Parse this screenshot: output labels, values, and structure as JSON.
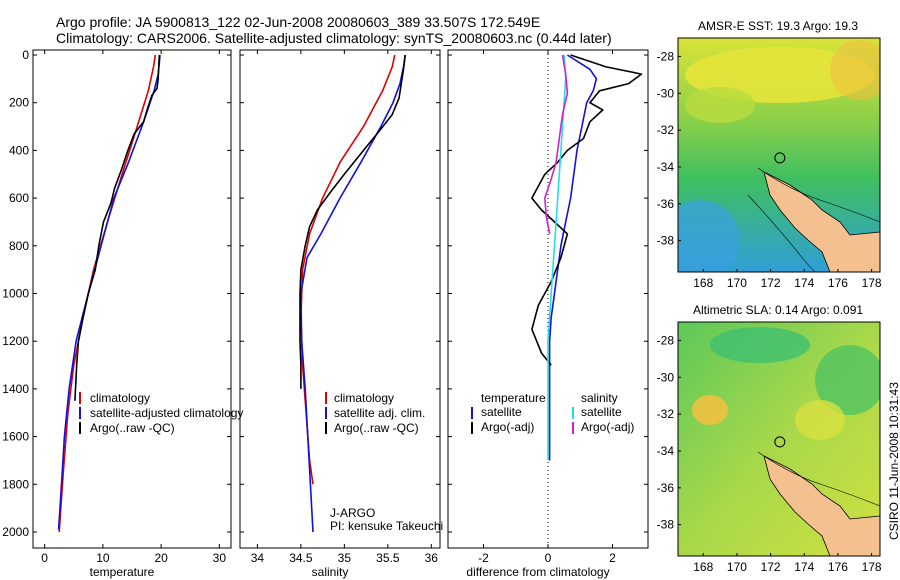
{
  "header": {
    "line1": "Argo profile: JA 5900813_122 02-Jun-2008 20080603_389 33.507S 172.549E",
    "line2": "Climatology: CARS2006. Satellite-adjusted climatology: synTS_20080603.nc (0.44d later)"
  },
  "side_label": "CSIRO 11-Jun-2008 10:31:43",
  "colors": {
    "climatology": "#e00000",
    "satellite": "#1010e0",
    "argo": "#000000",
    "sat_sal": "#20e0e8",
    "argo_sal": "#d020d0"
  },
  "chart_data": [
    {
      "id": "temperature",
      "type": "line",
      "xlabel": "temperature",
      "ylabel": "",
      "xlim": [
        -2,
        32
      ],
      "ylim": [
        2100,
        0
      ],
      "xticks": [
        0,
        10,
        20,
        30
      ],
      "yticks": [
        0,
        200,
        400,
        600,
        800,
        1000,
        1200,
        1400,
        1600,
        1800,
        2000
      ],
      "legend": [
        "climatology",
        "satellite-adjusted climatology",
        "Argo(..raw -QC)"
      ],
      "series": [
        {
          "name": "climatology",
          "color": "#e00000",
          "points": [
            [
              19,
              0
            ],
            [
              18.7,
              50
            ],
            [
              17.8,
              150
            ],
            [
              15.9,
              300
            ],
            [
              13.3,
              500
            ],
            [
              10.8,
              700
            ],
            [
              8.4,
              900
            ],
            [
              6.6,
              1100
            ],
            [
              5,
              1300
            ],
            [
              4,
              1500
            ],
            [
              3.2,
              1750
            ],
            [
              2.5,
              2000
            ]
          ]
        },
        {
          "name": "satellite-adjusted climatology",
          "color": "#1010e0",
          "points": [
            [
              19.8,
              0
            ],
            [
              19.7,
              30
            ],
            [
              19.5,
              80
            ],
            [
              18.8,
              150
            ],
            [
              17,
              280
            ],
            [
              14.4,
              450
            ],
            [
              11.9,
              600
            ],
            [
              9.7,
              800
            ],
            [
              7.5,
              1000
            ],
            [
              5.4,
              1200
            ],
            [
              4.2,
              1400
            ],
            [
              3.4,
              1600
            ],
            [
              2.9,
              1800
            ],
            [
              2.4,
              1990
            ]
          ]
        },
        {
          "name": "Argo(..raw -QC)",
          "color": "#000000",
          "points": [
            [
              19.7,
              0
            ],
            [
              19.6,
              40
            ],
            [
              19.5,
              100
            ],
            [
              19.3,
              140
            ],
            [
              18.4,
              170
            ],
            [
              17.6,
              230
            ],
            [
              17,
              280
            ],
            [
              15.4,
              330
            ],
            [
              14.3,
              400
            ],
            [
              13.2,
              480
            ],
            [
              12,
              560
            ],
            [
              11.4,
              620
            ],
            [
              10.1,
              700
            ],
            [
              9.3,
              800
            ],
            [
              8.7,
              900
            ],
            [
              7.5,
              1000
            ],
            [
              6.6,
              1100
            ],
            [
              5.8,
              1200
            ],
            [
              5.5,
              1300
            ],
            [
              5.2,
              1450
            ]
          ]
        }
      ]
    },
    {
      "id": "salinity",
      "type": "line",
      "xlabel": "salinity",
      "ylabel": "",
      "xlim": [
        33.8,
        36.1
      ],
      "ylim": [
        2100,
        0
      ],
      "xticks": [
        34,
        34.5,
        35,
        35.5,
        36
      ],
      "yticks": [
        0,
        200,
        400,
        600,
        800,
        1000,
        1200,
        1400,
        1600,
        1800,
        2000
      ],
      "legend": [
        "climatology",
        "satellite adj. clim.",
        "Argo(..raw -QC)"
      ],
      "annotations": [
        "J-ARGO",
        "PI: kensuke Takeuchi"
      ],
      "series": [
        {
          "name": "climatology",
          "color": "#e00000",
          "points": [
            [
              35.58,
              0
            ],
            [
              35.55,
              50
            ],
            [
              35.44,
              150
            ],
            [
              35.22,
              300
            ],
            [
              34.95,
              450
            ],
            [
              34.75,
              600
            ],
            [
              34.6,
              750
            ],
            [
              34.52,
              900
            ],
            [
              34.5,
              1100
            ],
            [
              34.52,
              1300
            ],
            [
              34.56,
              1500
            ],
            [
              34.6,
              1700
            ],
            [
              34.64,
              1800
            ]
          ]
        },
        {
          "name": "satellite adj. clim.",
          "color": "#1010e0",
          "points": [
            [
              35.7,
              0
            ],
            [
              35.68,
              50
            ],
            [
              35.64,
              120
            ],
            [
              35.56,
              200
            ],
            [
              35.42,
              300
            ],
            [
              35.19,
              450
            ],
            [
              34.95,
              600
            ],
            [
              34.73,
              750
            ],
            [
              34.57,
              850
            ],
            [
              34.5,
              1000
            ],
            [
              34.51,
              1200
            ],
            [
              34.55,
              1400
            ],
            [
              34.58,
              1600
            ],
            [
              34.61,
              1800
            ],
            [
              34.64,
              2000
            ]
          ]
        },
        {
          "name": "Argo(..raw -QC)",
          "color": "#000000",
          "points": [
            [
              35.7,
              0
            ],
            [
              35.68,
              60
            ],
            [
              35.65,
              130
            ],
            [
              35.63,
              180
            ],
            [
              35.55,
              250
            ],
            [
              35.4,
              320
            ],
            [
              35.22,
              400
            ],
            [
              35.0,
              500
            ],
            [
              34.83,
              580
            ],
            [
              34.69,
              650
            ],
            [
              34.6,
              720
            ],
            [
              34.55,
              800
            ],
            [
              34.5,
              900
            ],
            [
              34.49,
              1000
            ],
            [
              34.49,
              1200
            ],
            [
              34.5,
              1300
            ],
            [
              34.5,
              1400
            ]
          ]
        }
      ]
    },
    {
      "id": "difference",
      "type": "line",
      "xlabel": "difference from climatology",
      "ylabel": "",
      "xlim": [
        -3.1,
        3.1
      ],
      "ylim": [
        2100,
        0
      ],
      "xticks": [
        -2,
        0,
        2
      ],
      "yticks": [
        0,
        200,
        400,
        600,
        800,
        1000,
        1200,
        1400,
        1600,
        1800,
        2000
      ],
      "legend_groups": [
        {
          "title": "temperature",
          "entries": [
            "satellite",
            "Argo(-adj)"
          ]
        },
        {
          "title": "salinity",
          "entries": [
            "satellite",
            "Argo(-adj)"
          ]
        }
      ],
      "series": [
        {
          "name": "temperature satellite",
          "color": "#1010e0",
          "points": [
            [
              0.6,
              0
            ],
            [
              1.3,
              60
            ],
            [
              1.5,
              100
            ],
            [
              1.4,
              150
            ],
            [
              1.2,
              200
            ],
            [
              1.05,
              300
            ],
            [
              0.9,
              400
            ],
            [
              0.8,
              500
            ],
            [
              0.7,
              600
            ],
            [
              0.55,
              700
            ],
            [
              0.4,
              800
            ],
            [
              0.3,
              900
            ],
            [
              0.2,
              1000
            ],
            [
              0.1,
              1100
            ],
            [
              0.05,
              1200
            ],
            [
              0.05,
              1400
            ],
            [
              0.05,
              1600
            ],
            [
              0.05,
              1700
            ]
          ]
        },
        {
          "name": "temperature Argo(-adj)",
          "color": "#000000",
          "points": [
            [
              0.7,
              0
            ],
            [
              1.8,
              50
            ],
            [
              2.9,
              80
            ],
            [
              2.5,
              120
            ],
            [
              1.6,
              150
            ],
            [
              1.3,
              200
            ],
            [
              1.7,
              230
            ],
            [
              1.3,
              280
            ],
            [
              1.1,
              350
            ],
            [
              0.6,
              400
            ],
            [
              0.3,
              450
            ],
            [
              -0.1,
              500
            ],
            [
              -0.3,
              550
            ],
            [
              -0.5,
              600
            ],
            [
              -0.2,
              650
            ],
            [
              0.2,
              700
            ],
            [
              0.6,
              750
            ],
            [
              0.4,
              850
            ],
            [
              0.1,
              950
            ],
            [
              -0.3,
              1050
            ],
            [
              -0.5,
              1150
            ],
            [
              -0.2,
              1250
            ],
            [
              0.1,
              1300
            ]
          ]
        },
        {
          "name": "salinity satellite",
          "color": "#20e0e8",
          "points": [
            [
              0.5,
              0
            ],
            [
              0.55,
              100
            ],
            [
              0.5,
              200
            ],
            [
              0.45,
              300
            ],
            [
              0.4,
              400
            ],
            [
              0.35,
              500
            ],
            [
              0.3,
              600
            ],
            [
              0.25,
              700
            ],
            [
              0.2,
              800
            ],
            [
              0.15,
              900
            ],
            [
              0.1,
              1000
            ],
            [
              0.05,
              1100
            ],
            [
              0,
              1200
            ],
            [
              0,
              1400
            ],
            [
              0,
              1600
            ],
            [
              0,
              1700
            ]
          ]
        },
        {
          "name": "salinity Argo(-adj)",
          "color": "#d020d0",
          "points": [
            [
              0.45,
              0
            ],
            [
              0.55,
              80
            ],
            [
              0.6,
              160
            ],
            [
              0.45,
              250
            ],
            [
              0.35,
              350
            ],
            [
              0.25,
              450
            ],
            [
              0.1,
              520
            ],
            [
              -0.1,
              600
            ],
            [
              -0.05,
              680
            ],
            [
              0.05,
              750
            ]
          ]
        }
      ]
    }
  ],
  "maps": [
    {
      "id": "sst",
      "title": "AMSR-E SST: 19.3 Argo: 19.3",
      "xlim": [
        166.5,
        178.5
      ],
      "ylim": [
        -39.7,
        -27
      ],
      "xticks": [
        168,
        170,
        172,
        174,
        176,
        178
      ],
      "yticks": [
        -28,
        -30,
        -32,
        -34,
        -36,
        -38
      ],
      "argo_position": [
        172.549,
        -33.507
      ]
    },
    {
      "id": "sla",
      "title": "Altimetric SLA: 0.14 Argo: 0.091",
      "xlim": [
        166.5,
        178.5
      ],
      "ylim": [
        -39.7,
        -27
      ],
      "xticks": [
        168,
        170,
        172,
        174,
        176,
        178
      ],
      "yticks": [
        -28,
        -30,
        -32,
        -34,
        -36,
        -38
      ],
      "argo_position": [
        172.549,
        -33.507
      ]
    }
  ]
}
